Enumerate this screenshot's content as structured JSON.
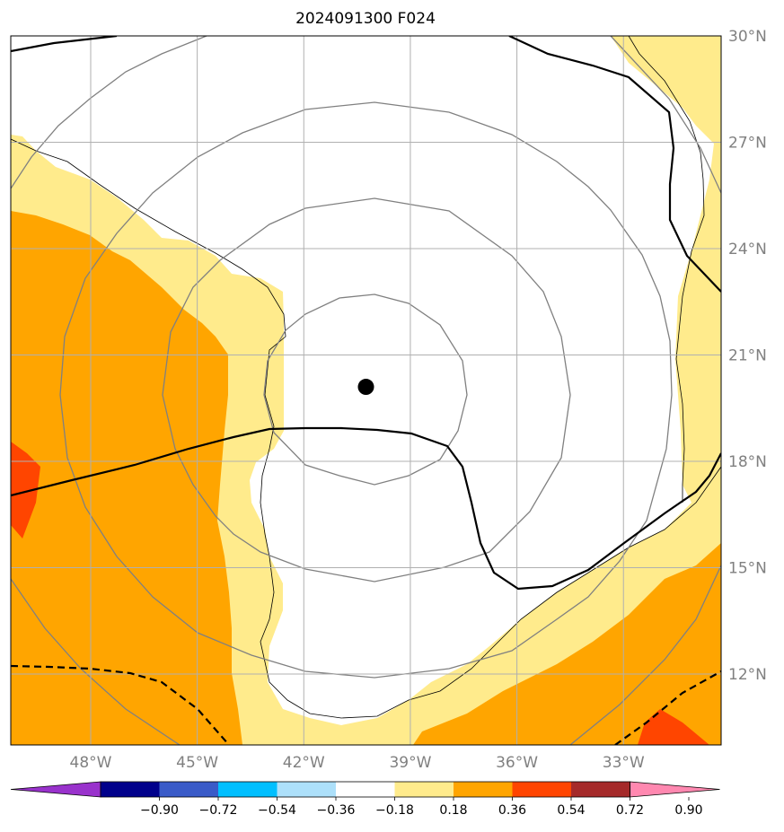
{
  "title": "2024091300 F024",
  "map": {
    "lon_range": [
      -50.25,
      -30.25
    ],
    "lat_range": [
      10.0,
      30.0
    ],
    "storm_center": {
      "lon": -40.25,
      "lat": 20.1
    },
    "grid": true,
    "lon_ticks": [
      {
        "value": -48,
        "label": "48°W"
      },
      {
        "value": -45,
        "label": "45°W"
      },
      {
        "value": -42,
        "label": "42°W"
      },
      {
        "value": -39,
        "label": "39°W"
      },
      {
        "value": -36,
        "label": "36°W"
      },
      {
        "value": -33,
        "label": "33°W"
      }
    ],
    "lat_ticks": [
      {
        "value": 30,
        "label": "30°N"
      },
      {
        "value": 27,
        "label": "27°N"
      },
      {
        "value": 24,
        "label": "24°N"
      },
      {
        "value": 21,
        "label": "21°N"
      },
      {
        "value": 18,
        "label": "18°N"
      },
      {
        "value": 15,
        "label": "15°N"
      },
      {
        "value": 12,
        "label": "12°N"
      }
    ]
  },
  "colorbar": {
    "extend": "both",
    "ticks": [
      "−0.90",
      "−0.72",
      "−0.54",
      "−0.36",
      "−0.18",
      "0.18",
      "0.36",
      "0.54",
      "0.72",
      "0.90"
    ],
    "colors": [
      "#9932CC",
      "#00008B",
      "#3A5BC8",
      "#00BFFF",
      "#ADE0FA",
      "#FFFFFF",
      "#FFEB8C",
      "#FFA500",
      "#FF4500",
      "#A52A2A",
      "#FF88B0"
    ]
  },
  "colors": {
    "light_yellow": "#FFEB8C",
    "orange": "#FFA500",
    "red_orange": "#FF4500",
    "gray_contour": "#808080",
    "grid": "#b0b0b0"
  }
}
